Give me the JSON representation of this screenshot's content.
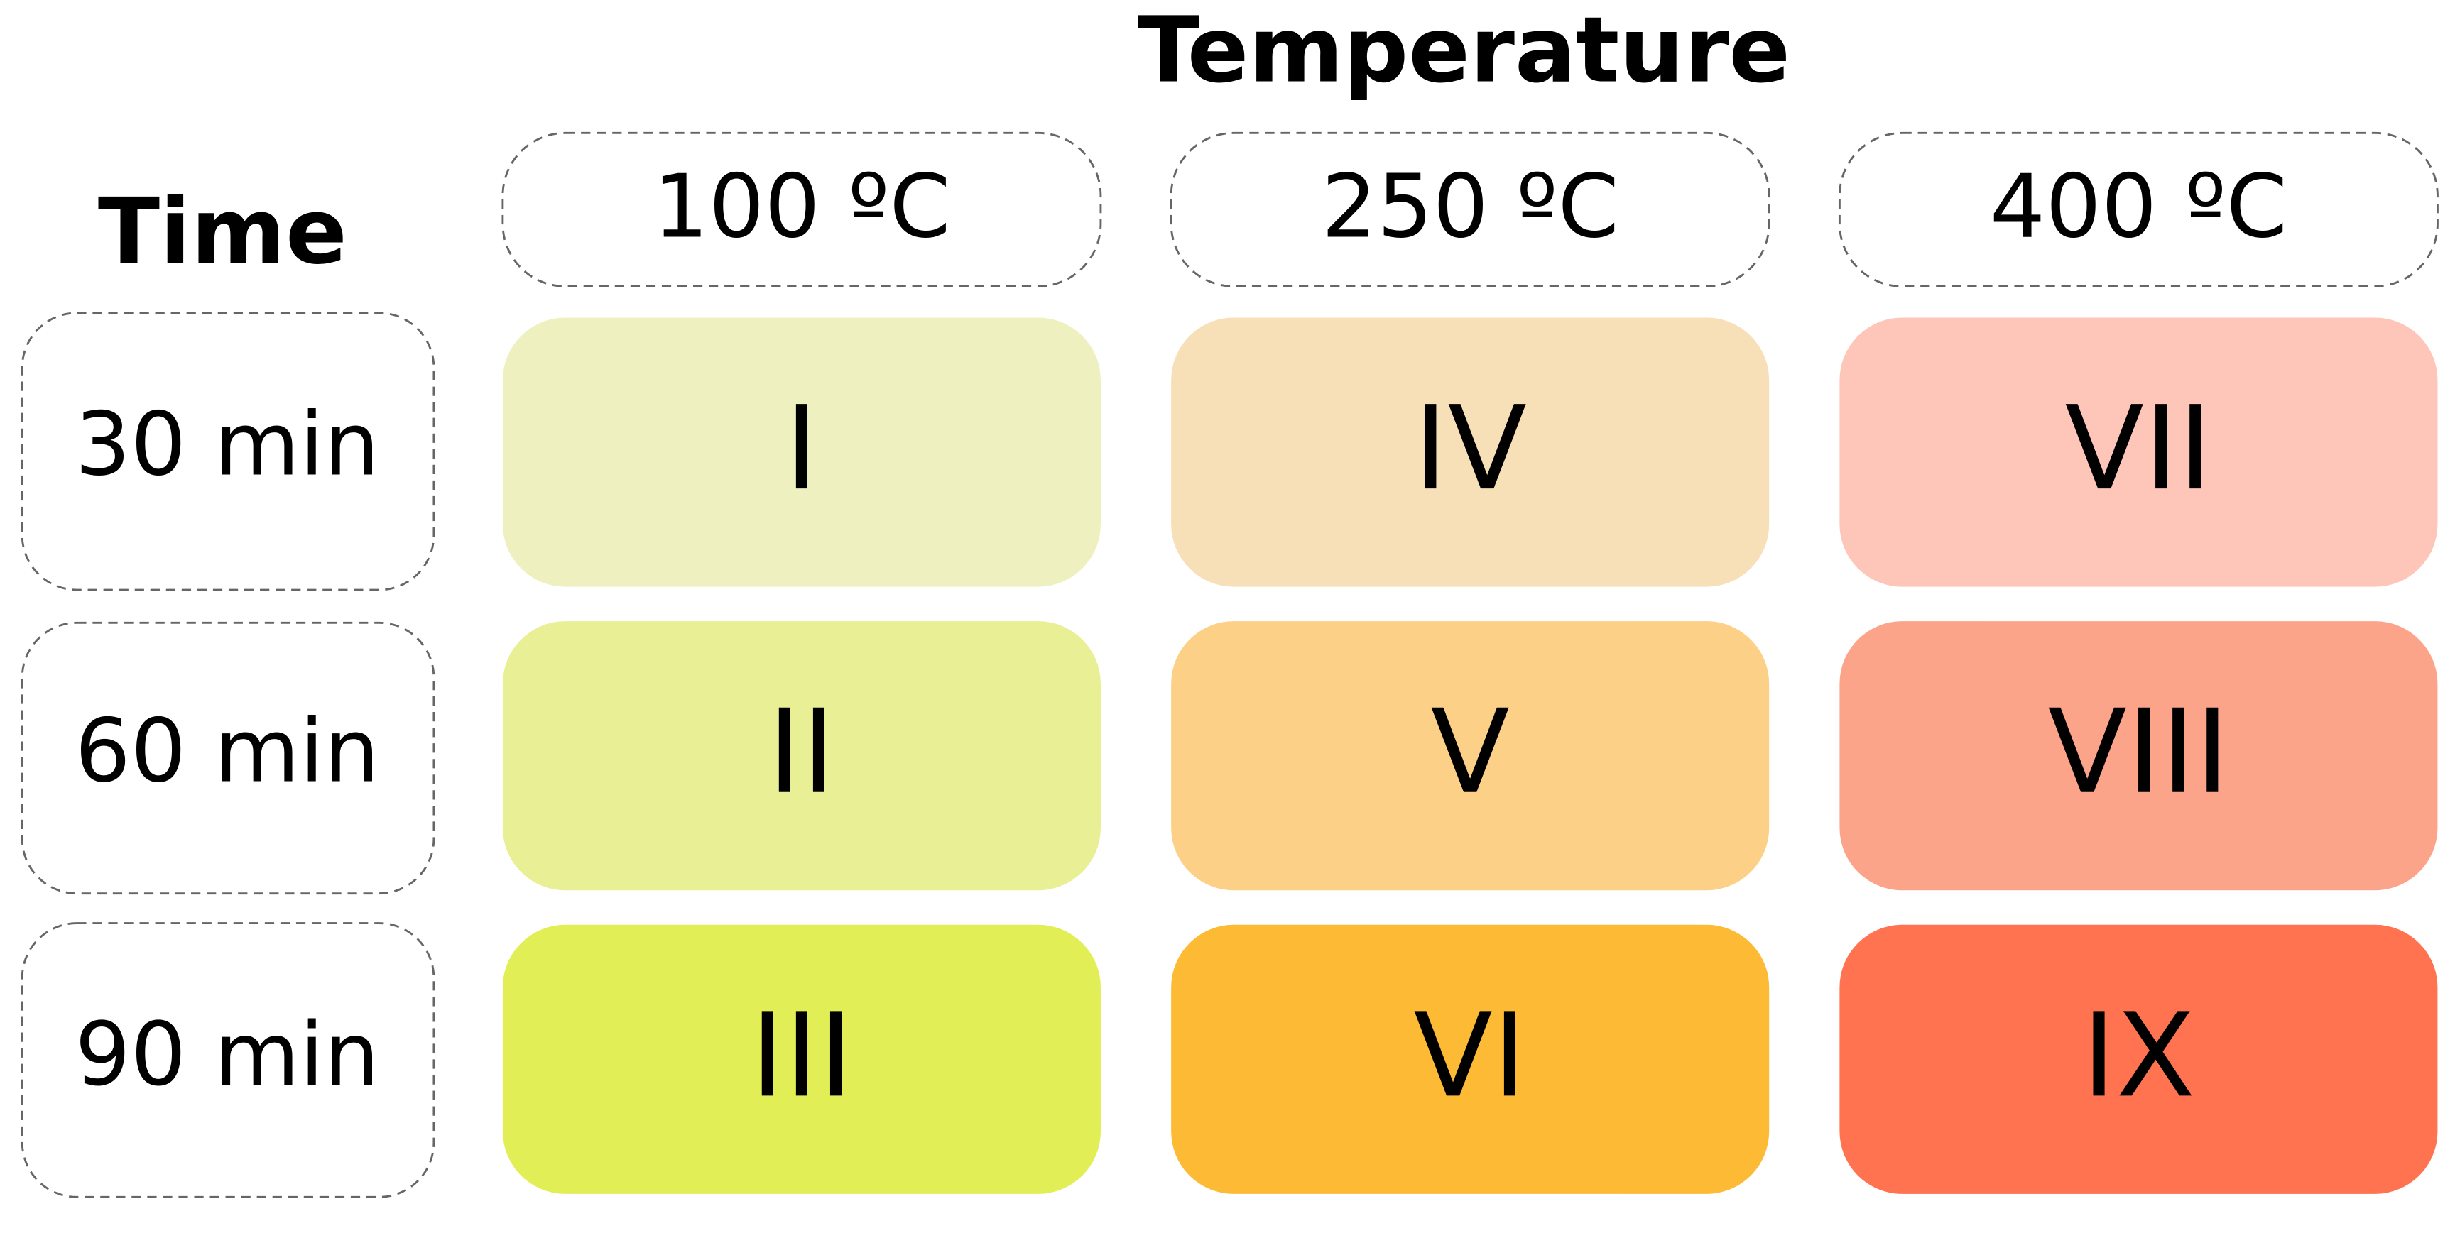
{
  "title": "Temperature",
  "row_header_title": "Time",
  "columns": [
    "100 ºC",
    "250 ºC",
    "400 ºC"
  ],
  "rows": [
    "30 min",
    "60 min",
    "90 min"
  ],
  "cells": [
    [
      "I",
      "IV",
      "VII"
    ],
    [
      "II",
      "V",
      "VIII"
    ],
    [
      "III",
      "VI",
      "IX"
    ]
  ]
}
